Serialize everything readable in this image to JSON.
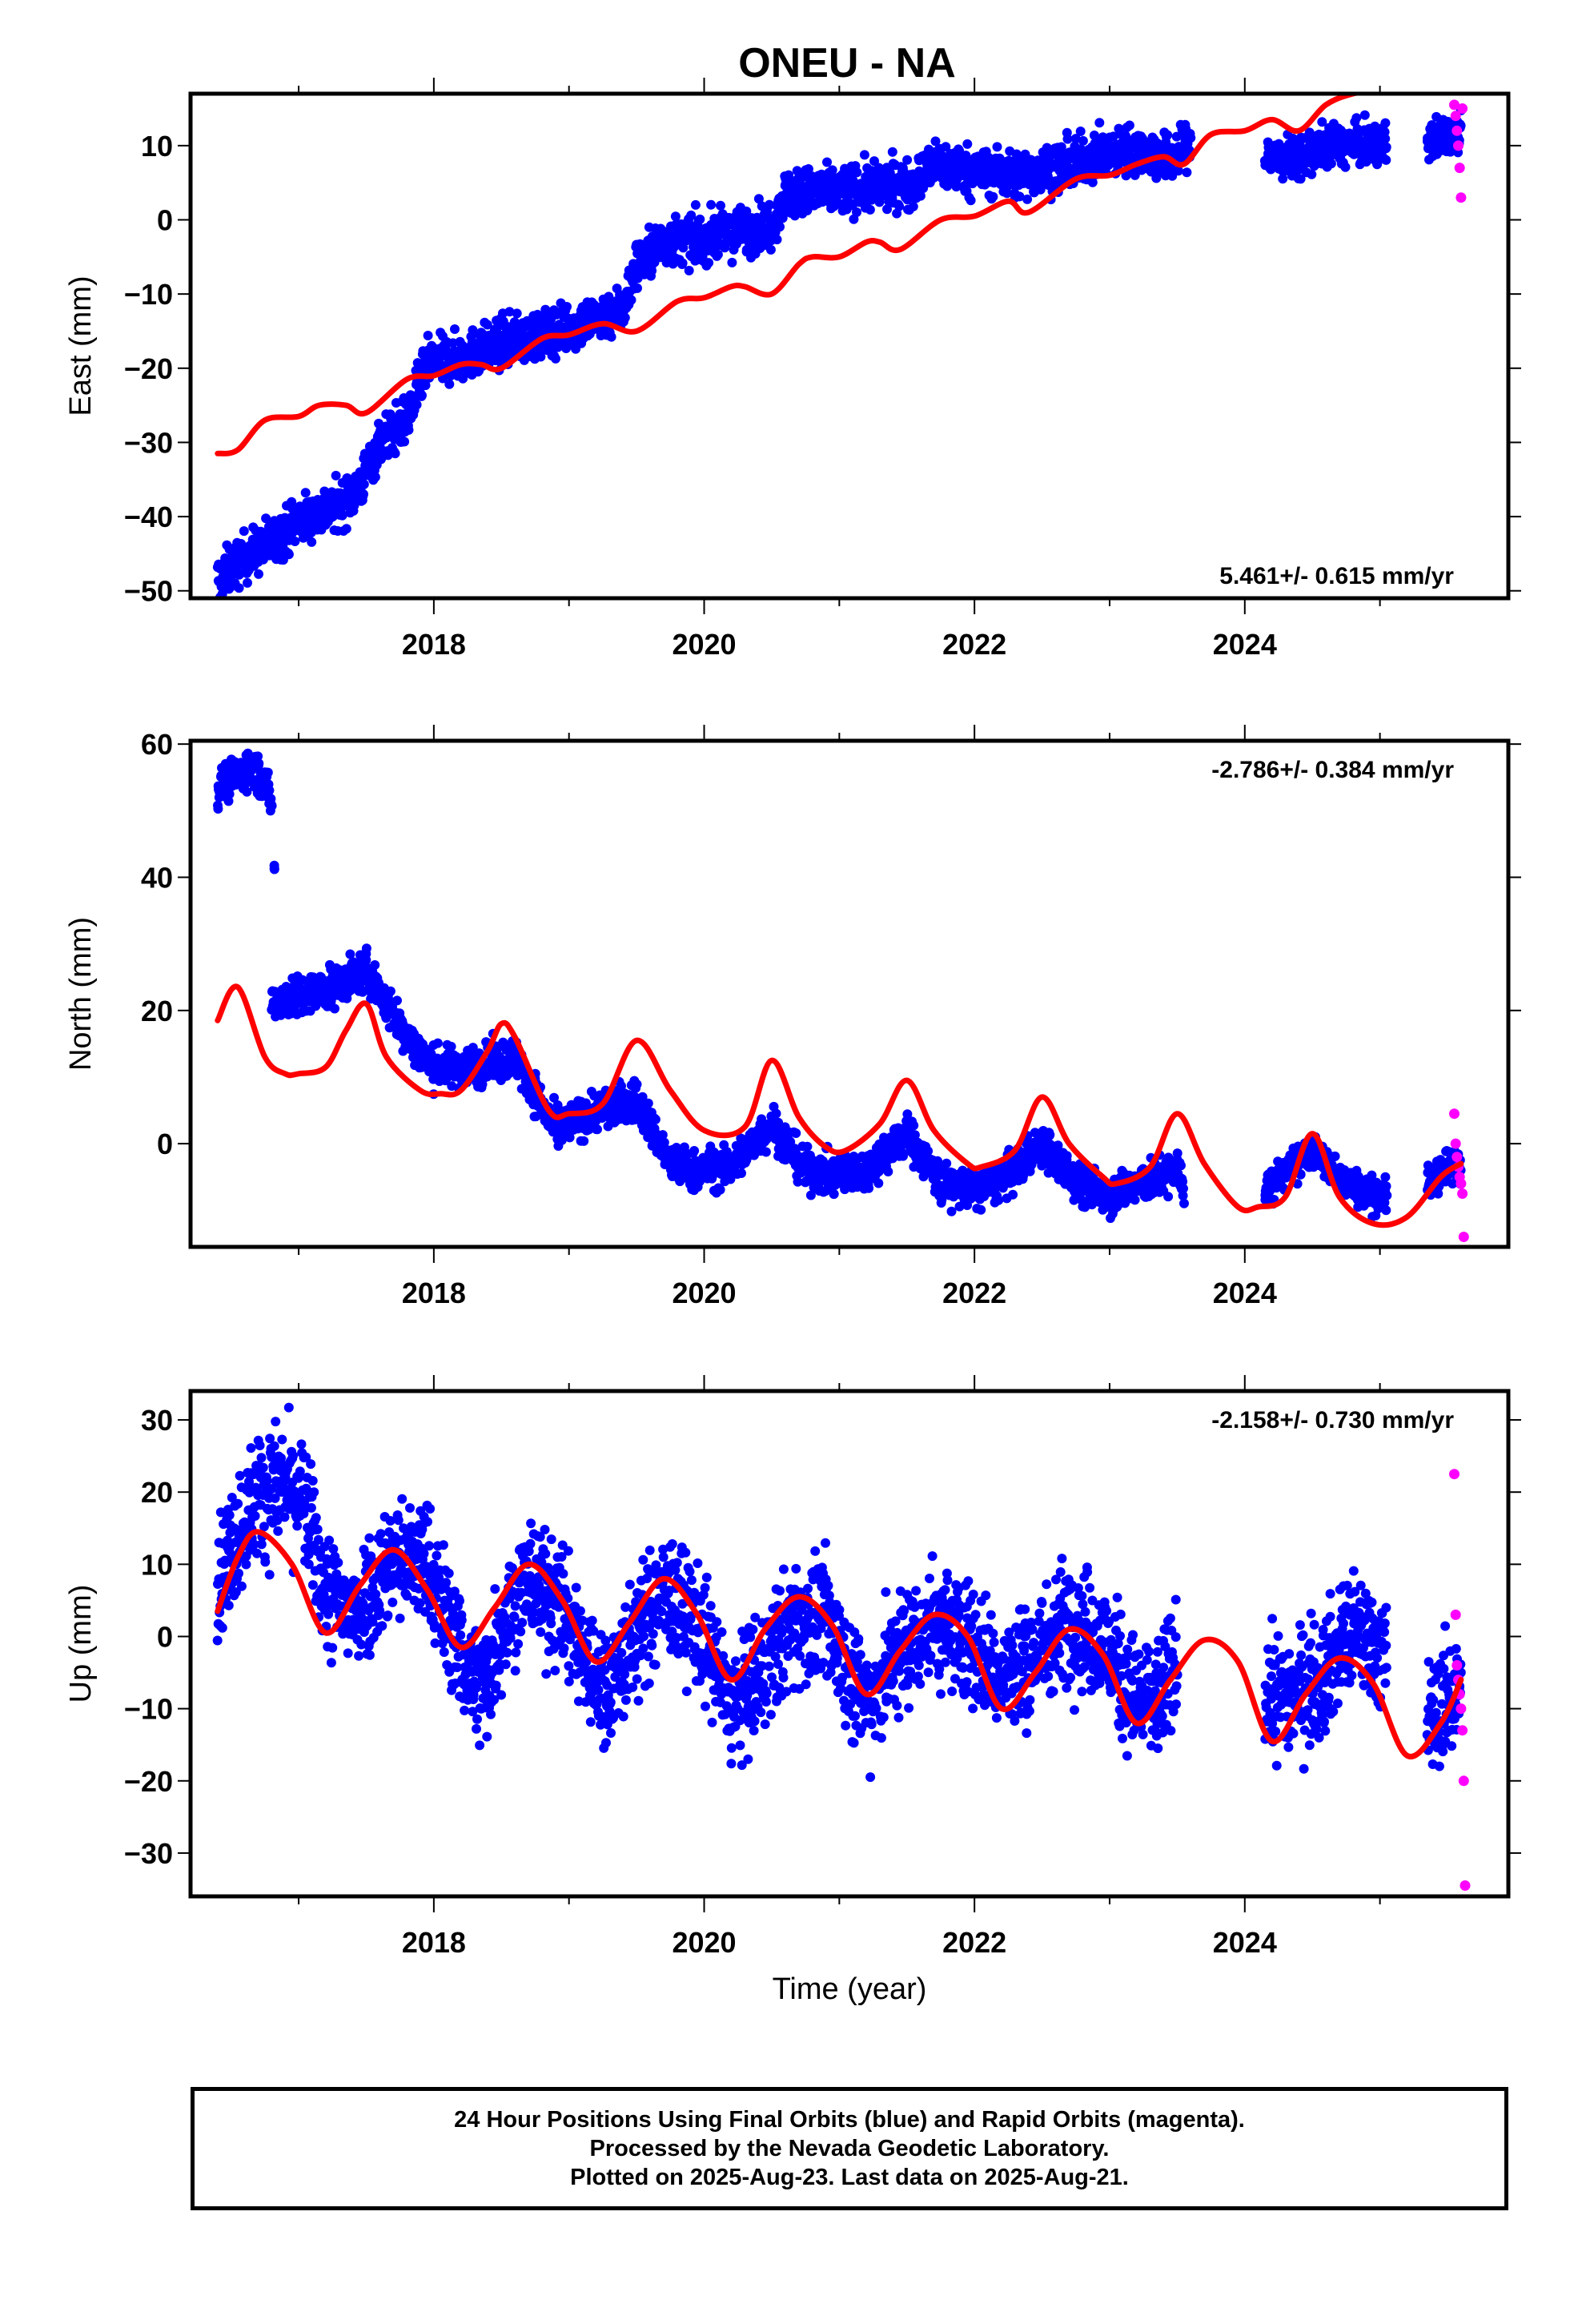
{
  "title": "ONEU - NA",
  "colors": {
    "final": "#0000ff",
    "rapid": "#ff00ff",
    "model": "#ff0000",
    "frame": "#000000"
  },
  "caption": [
    "24 Hour Positions Using Final Orbits (blue) and Rapid Orbits (magenta).",
    "Processed by the Nevada Geodetic Laboratory.",
    "Plotted on 2025-Aug-23. Last data on 2025-Aug-21."
  ],
  "chart_data": [
    {
      "type": "scatter",
      "ylabel": "East (mm)",
      "xlabel": "",
      "xlim": [
        2016.2,
        2025.95
      ],
      "ylim": [
        -51,
        17
      ],
      "xticks": [
        2018,
        2020,
        2022,
        2024
      ],
      "yticks": [
        10,
        0,
        -10,
        -20,
        -30,
        -40,
        -50
      ],
      "rate_label": "5.461+/- 0.615 mm/yr",
      "rate_position": "bottom-right",
      "final_segments": [
        {
          "x": [
            2016.4,
            2016.6,
            2016.8,
            2017.0,
            2017.3,
            2017.45,
            2017.6,
            2017.8,
            2017.95,
            2018.2,
            2018.5,
            2018.8,
            2019.1,
            2019.4,
            2019.5,
            2019.7,
            2020.0,
            2020.3,
            2020.5,
            2020.6,
            2021.0,
            2021.3,
            2021.55,
            2021.7,
            2022.0,
            2022.3,
            2022.6,
            2022.9,
            2023.2,
            2023.45,
            2023.6
          ],
          "y": [
            -48.5,
            -45.5,
            -43.5,
            -40.5,
            -38.5,
            -36,
            -30,
            -27,
            -19.5,
            -18.5,
            -16.5,
            -15.5,
            -14,
            -12,
            -6,
            -3,
            -2.5,
            -1.5,
            -0.5,
            3.5,
            4,
            4.5,
            5,
            7.5,
            6.5,
            6,
            7,
            8.5,
            9.5,
            8,
            10.5
          ],
          "noise": 1.6
        },
        {
          "x": [
            2024.15,
            2024.35,
            2024.6,
            2024.85,
            2025.05
          ],
          "y": [
            8.5,
            8,
            10,
            10,
            10
          ],
          "noise": 1.4
        },
        {
          "x": [
            2025.35,
            2025.5,
            2025.6
          ],
          "y": [
            10.5,
            11.5,
            12.5
          ],
          "noise": 1.4
        }
      ],
      "rapid": {
        "x": [
          2025.55,
          2025.56,
          2025.57,
          2025.58,
          2025.59,
          2025.6,
          2025.61
        ],
        "y": [
          15.5,
          14,
          12,
          10,
          7,
          3,
          15
        ]
      },
      "model": {
        "x": [
          2016.4,
          2016.55,
          2016.75,
          2017.0,
          2017.15,
          2017.35,
          2017.5,
          2017.8,
          2018.0,
          2018.2,
          2018.35,
          2018.5,
          2018.8,
          2019.0,
          2019.25,
          2019.5,
          2019.8,
          2020.0,
          2020.2,
          2020.3,
          2020.5,
          2020.7,
          2020.8,
          2021.0,
          2021.2,
          2021.3,
          2021.45,
          2021.75,
          2022.0,
          2022.25,
          2022.4,
          2022.75,
          2023.0,
          2023.2,
          2023.4,
          2023.55,
          2023.75,
          2024.0,
          2024.2,
          2024.4,
          2024.6,
          2024.8,
          2025.0
        ],
        "y": [
          -31.5,
          -31,
          -27,
          -26.5,
          -25,
          -25,
          -26,
          -21.5,
          -21,
          -19.5,
          -19.5,
          -20,
          -16,
          -15.5,
          -14,
          -15,
          -11,
          -10.5,
          -9,
          -9,
          -10,
          -6,
          -5,
          -5,
          -3,
          -3,
          -4,
          0,
          0.5,
          2.5,
          1,
          5.5,
          6,
          7.5,
          8.5,
          7.5,
          11.5,
          12,
          13.5,
          12,
          15.5,
          17,
          17.5
        ]
      }
    },
    {
      "type": "scatter",
      "ylabel": "North (mm)",
      "xlabel": "",
      "xlim": [
        2016.2,
        2025.95
      ],
      "ylim": [
        -15.5,
        60.5
      ],
      "xticks": [
        2018,
        2020,
        2022,
        2024
      ],
      "yticks": [
        60,
        40,
        20,
        0
      ],
      "rate_label": "-2.786+/- 0.384 mm/yr",
      "rate_position": "top-right",
      "final_segments": [
        {
          "x": [
            2016.4,
            2016.55,
            2016.65,
            2016.75,
            2016.8
          ],
          "y": [
            53.5,
            55.5,
            57,
            54,
            51
          ],
          "noise": 1.4
        },
        {
          "x": [
            2016.82
          ],
          "y": [
            41.5
          ],
          "noise": 0.2
        },
        {
          "x": [
            2016.8,
            2017.0,
            2017.2,
            2017.5,
            2017.8,
            2018.0,
            2018.2,
            2018.4,
            2018.6,
            2018.9,
            2019.2,
            2019.5,
            2019.75,
            2019.9,
            2020.2,
            2020.5,
            2020.75,
            2021.0,
            2021.2,
            2021.5,
            2021.75,
            2022.0,
            2022.25,
            2022.5,
            2022.75,
            2023.0,
            2023.25,
            2023.5,
            2023.55
          ],
          "y": [
            21.5,
            22,
            23,
            26,
            16,
            11.5,
            11.5,
            12,
            13,
            2,
            5,
            6.5,
            -3,
            -4,
            -3.5,
            3,
            -4,
            -5,
            -4,
            1.5,
            -6,
            -7,
            -5,
            0,
            -6,
            -7.5,
            -6,
            -4,
            -6.5
          ],
          "noise": 1.5
        },
        {
          "x": [
            2024.15,
            2024.35,
            2024.5,
            2024.7,
            2024.9,
            2025.05
          ],
          "y": [
            -7,
            -3.5,
            -1,
            -5,
            -7.5,
            -8
          ],
          "noise": 1.3
        },
        {
          "x": [
            2025.35,
            2025.5,
            2025.6
          ],
          "y": [
            -6,
            -3.5,
            -3
          ],
          "noise": 1.3
        }
      ],
      "rapid": {
        "x": [
          2025.55,
          2025.56,
          2025.57,
          2025.58,
          2025.59,
          2025.6,
          2025.61,
          2025.62
        ],
        "y": [
          4.5,
          0,
          -2,
          -3.5,
          -5,
          -6,
          -7.5,
          -14
        ]
      },
      "model": {
        "x": [
          2016.4,
          2016.55,
          2016.75,
          2016.9,
          2017.0,
          2017.2,
          2017.35,
          2017.5,
          2017.65,
          2017.9,
          2018.05,
          2018.2,
          2018.4,
          2018.5,
          2018.6,
          2018.85,
          2019.0,
          2019.25,
          2019.5,
          2019.75,
          2020.0,
          2020.3,
          2020.5,
          2020.7,
          2020.9,
          2021.05,
          2021.3,
          2021.5,
          2021.7,
          2021.95,
          2022.05,
          2022.3,
          2022.5,
          2022.7,
          2022.95,
          2023.05,
          2023.3,
          2023.5,
          2023.7,
          2023.95,
          2024.1,
          2024.3,
          2024.5,
          2024.7,
          2024.95,
          2025.2,
          2025.45,
          2025.6
        ],
        "y": [
          18.5,
          23.5,
          13,
          10.5,
          10.5,
          11.5,
          17,
          21,
          13,
          8,
          7.5,
          8,
          14,
          18,
          16,
          5,
          4.5,
          6,
          15.5,
          8,
          2,
          2.5,
          12.5,
          4,
          -0.5,
          -1,
          3,
          9.5,
          2,
          -3,
          -3.5,
          -1,
          7,
          0,
          -5,
          -6,
          -3.5,
          4.5,
          -3,
          -9.5,
          -9.5,
          -8,
          1.5,
          -8,
          -12,
          -11,
          -5,
          -3
        ]
      }
    },
    {
      "type": "scatter",
      "ylabel": "Up (mm)",
      "xlabel": "Time (year)",
      "xlim": [
        2016.2,
        2025.95
      ],
      "ylim": [
        -36,
        34
      ],
      "xticks": [
        2018,
        2020,
        2022,
        2024
      ],
      "yticks": [
        30,
        20,
        10,
        0,
        -10,
        -20,
        -30
      ],
      "rate_label": "-2.158+/- 0.730 mm/yr",
      "rate_position": "top-right",
      "final_segments": [
        {
          "x": [
            2016.4,
            2016.7,
            2016.9,
            2017.05,
            2017.2,
            2017.4,
            2017.7,
            2017.95,
            2018.15,
            2018.35,
            2018.55,
            2018.7,
            2018.95,
            2019.25,
            2019.5,
            2019.7,
            2019.95,
            2020.2,
            2020.4,
            2020.65,
            2020.9,
            2021.2,
            2021.45,
            2021.7,
            2021.95,
            2022.2,
            2022.5,
            2022.7,
            2022.95,
            2023.2,
            2023.35,
            2023.5
          ],
          "y": [
            8,
            20,
            21,
            18,
            6,
            3,
            11,
            10,
            0,
            -8,
            4,
            8,
            4,
            -8,
            0,
            6,
            2,
            -10,
            -6,
            2,
            2,
            -9,
            -2,
            2,
            0,
            -6,
            -2,
            3,
            -1,
            -9,
            -9,
            -4
          ],
          "noise": 4.2
        },
        {
          "x": [
            2024.15,
            2024.35,
            2024.55,
            2024.75,
            2024.95,
            2025.05
          ],
          "y": [
            -8,
            -8,
            -6,
            0,
            0,
            -4
          ],
          "noise": 4.2
        },
        {
          "x": [
            2025.35,
            2025.5,
            2025.6
          ],
          "y": [
            -12,
            -9,
            -7
          ],
          "noise": 4.0
        }
      ],
      "rapid": {
        "x": [
          2025.55,
          2025.56,
          2025.57,
          2025.58,
          2025.59,
          2025.6,
          2025.61,
          2025.62,
          2025.63
        ],
        "y": [
          22.5,
          3,
          -4,
          -6,
          -8,
          -10,
          -13,
          -20,
          -34.5
        ]
      },
      "model": {
        "x": [
          2016.4,
          2016.55,
          2016.7,
          2016.95,
          2017.2,
          2017.45,
          2017.7,
          2017.95,
          2018.2,
          2018.45,
          2018.7,
          2018.95,
          2019.2,
          2019.45,
          2019.7,
          2019.95,
          2020.2,
          2020.45,
          2020.7,
          2020.95,
          2021.2,
          2021.45,
          2021.7,
          2021.95,
          2022.2,
          2022.45,
          2022.7,
          2022.95,
          2023.2,
          2023.45,
          2023.7,
          2023.95,
          2024.2,
          2024.45,
          2024.7,
          2024.95,
          2025.2,
          2025.45,
          2025.6
        ],
        "y": [
          3.5,
          11,
          14.5,
          10,
          0.5,
          7,
          12,
          6.5,
          -1.5,
          4,
          10,
          5,
          -3.5,
          2,
          8,
          3,
          -6,
          1,
          5.5,
          1.5,
          -8,
          -2,
          3,
          0,
          -10,
          -5,
          1,
          -2.5,
          -12,
          -6,
          -0.5,
          -3.5,
          -14.5,
          -8,
          -3,
          -6.5,
          -16.5,
          -12,
          -6
        ]
      }
    }
  ]
}
